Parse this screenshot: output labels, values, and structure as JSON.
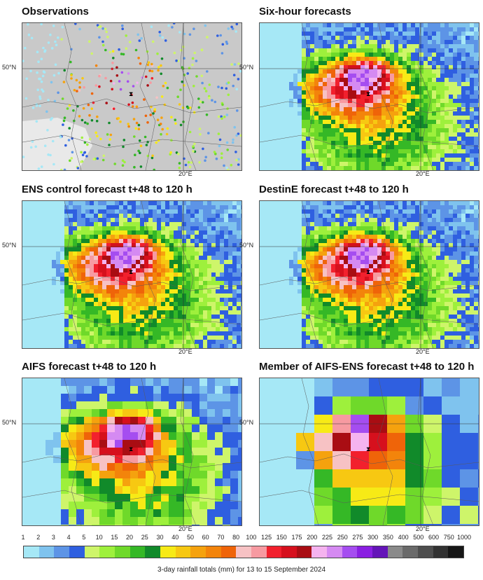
{
  "panels": [
    {
      "title": "Observations",
      "kind": "obs"
    },
    {
      "title": "Six-hour forecasts",
      "kind": "fine"
    },
    {
      "title": "ENS control forecast t+48 to 120 h",
      "kind": "fine"
    },
    {
      "title": "DestinE forecast t+48 to 120 h",
      "kind": "fine"
    },
    {
      "title": "AIFS forecast t+48 to 120 h",
      "kind": "medium"
    },
    {
      "title": "Member of AIFS-ENS forecast t+48 to 120 h",
      "kind": "coarse"
    }
  ],
  "axes": {
    "lat_label": "50°N",
    "lon_label": "20°E"
  },
  "legend": {
    "ticks": [
      "1",
      "2",
      "3",
      "4",
      "5",
      "10",
      "15",
      "20",
      "25",
      "30",
      "40",
      "50",
      "60",
      "70",
      "80",
      "100",
      "125",
      "150",
      "175",
      "200",
      "225",
      "250",
      "275",
      "300",
      "350",
      "400",
      "500",
      "600",
      "750",
      "1000"
    ],
    "colors": [
      "#a6e8f6",
      "#7fc3ee",
      "#5d94e6",
      "#2f5fe0",
      "#cef56a",
      "#9ef03c",
      "#6fd92a",
      "#35b826",
      "#118a2a",
      "#f7ea16",
      "#f7c812",
      "#f5a20e",
      "#f3840b",
      "#ef6409",
      "#f7c2c4",
      "#f79aa1",
      "#f2202d",
      "#d6101d",
      "#a90d13",
      "#f5b3ef",
      "#d58af2",
      "#a54df0",
      "#8a1fe2",
      "#6414b8",
      "#8a8a8a",
      "#6a6a6a",
      "#4e4e4e",
      "#323232",
      "#161616"
    ],
    "caption": "3-day rainfall totals (mm) for 13 to 15 September 2024"
  }
}
